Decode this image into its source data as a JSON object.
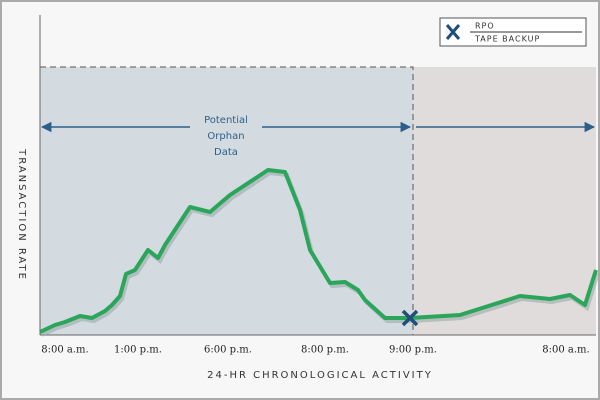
{
  "legend": {
    "line1": "RPO",
    "line2": "TAPE BACKUP"
  },
  "annotation": {
    "lines": [
      "Potential",
      "Orphan",
      "Data"
    ]
  },
  "y_axis_title": "TRANSACTION RATE",
  "x_axis_title": "24-HR CHRONOLOGICAL ACTIVITY",
  "x_labels": [
    "8:00 a.m.",
    "1:00 p.m.",
    "6:00 p.m.",
    "8:00 p.m.",
    "9:00 p.m.",
    "8:00 a.m."
  ]
}
